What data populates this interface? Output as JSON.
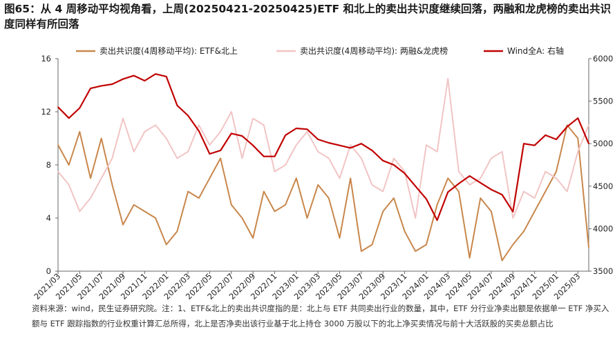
{
  "title": "图65：从 4 周移动平均视角看，上周(20250421-20250425)ETF 和北上的卖出共识度继续回落，两融和龙虎榜的卖出共识度同样有所回落",
  "note": "资料来源：wind，民生证券研究院。注：1、ETF&北上的卖出共识度指的是：北上与 ETF 共同卖出行业的数量，其中，ETF 分行业净卖出额是依据单一 ETF 净买入额与 ETF 跟踪指数的行业权重计算汇总所得，北上是否净卖出该行业基于北上持仓 3000 万股以下的北上净买卖情况与前十大活跃股的买卖总额占比",
  "colors": {
    "etf": "#c8864a",
    "margin": "#f2c4c4",
    "wind": "#c00000",
    "axis": "#666666"
  },
  "chart_data": {
    "type": "line",
    "x": [
      "2021/03",
      "2021/04",
      "2021/05",
      "2021/06",
      "2021/07",
      "2021/08",
      "2021/09",
      "2021/10",
      "2021/11",
      "2021/12",
      "2022/01",
      "2022/02",
      "2022/03",
      "2022/04",
      "2022/05",
      "2022/06",
      "2022/07",
      "2022/08",
      "2022/09",
      "2022/10",
      "2022/11",
      "2022/12",
      "2023/01",
      "2023/02",
      "2023/03",
      "2023/04",
      "2023/05",
      "2023/06",
      "2023/07",
      "2023/08",
      "2023/09",
      "2023/10",
      "2023/11",
      "2023/12",
      "2024/01",
      "2024/02",
      "2024/03",
      "2024/04",
      "2024/05",
      "2024/06",
      "2024/07",
      "2024/08",
      "2024/09",
      "2024/10",
      "2024/11",
      "2024/12",
      "2025/01",
      "2025/02",
      "2025/03",
      "2025/04"
    ],
    "xticks": [
      "2021/03",
      "2021/05",
      "2021/07",
      "2021/09",
      "2021/11",
      "2022/01",
      "2022/03",
      "2022/05",
      "2022/07",
      "2022/09",
      "2022/11",
      "2023/01",
      "2023/03",
      "2023/05",
      "2023/07",
      "2023/09",
      "2023/11",
      "2024/01",
      "2024/03",
      "2024/05",
      "2024/07",
      "2024/09",
      "2024/11",
      "2025/01",
      "2025/03"
    ],
    "left_axis": {
      "min": 0,
      "max": 16,
      "ticks": [
        0,
        4,
        8,
        12,
        16
      ]
    },
    "right_axis": {
      "label": "Wind全A: 右轴",
      "min": 3500,
      "max": 6000,
      "ticks": [
        3500,
        4000,
        4500,
        5000,
        5500,
        6000
      ]
    },
    "series": [
      {
        "name": "卖出共识度(4周移动平均): ETF&北上",
        "axis": "left",
        "values": [
          9.5,
          8.0,
          10.5,
          7.0,
          10.0,
          6.5,
          3.5,
          5.0,
          4.5,
          4.0,
          2.0,
          3.0,
          6.0,
          5.5,
          7.0,
          8.5,
          5.0,
          4.0,
          2.5,
          6.0,
          4.5,
          5.0,
          7.0,
          4.0,
          6.5,
          5.5,
          2.5,
          7.0,
          1.5,
          2.0,
          4.5,
          5.5,
          3.0,
          1.5,
          2.0,
          5.0,
          7.0,
          6.0,
          1.0,
          5.5,
          4.5,
          0.8,
          2.0,
          3.0,
          4.5,
          6.0,
          7.5,
          11.0,
          10.0,
          1.8
        ]
      },
      {
        "name": "卖出共识度(4周移动平均): 两融&龙虎榜",
        "axis": "left",
        "values": [
          7.5,
          6.5,
          4.5,
          5.5,
          7.0,
          8.5,
          11.5,
          9.0,
          10.5,
          11.0,
          10.0,
          8.5,
          9.0,
          11.0,
          9.5,
          10.5,
          12.0,
          8.5,
          11.5,
          11.0,
          7.5,
          8.0,
          9.5,
          10.5,
          9.0,
          8.5,
          7.0,
          9.5,
          8.5,
          6.5,
          6.0,
          8.5,
          7.5,
          4.0,
          9.5,
          9.0,
          14.5,
          7.5,
          6.5,
          7.0,
          8.5,
          9.0,
          4.0,
          6.0,
          5.5,
          7.5,
          7.0,
          6.0,
          9.0,
          11.0
        ]
      },
      {
        "name": "Wind全A: 右轴",
        "axis": "right",
        "values": [
          5430,
          5300,
          5420,
          5650,
          5680,
          5700,
          5760,
          5800,
          5740,
          5820,
          5790,
          5450,
          5330,
          5150,
          4880,
          4920,
          5120,
          5090,
          4980,
          4850,
          4850,
          5100,
          5180,
          5170,
          5050,
          5010,
          4980,
          4950,
          5000,
          4920,
          4800,
          4750,
          4650,
          4500,
          4350,
          4100,
          4430,
          4530,
          4620,
          4540,
          4460,
          4400,
          4200,
          5000,
          4980,
          5100,
          5050,
          5200,
          5300,
          5000
        ]
      }
    ],
    "legend": "top"
  }
}
